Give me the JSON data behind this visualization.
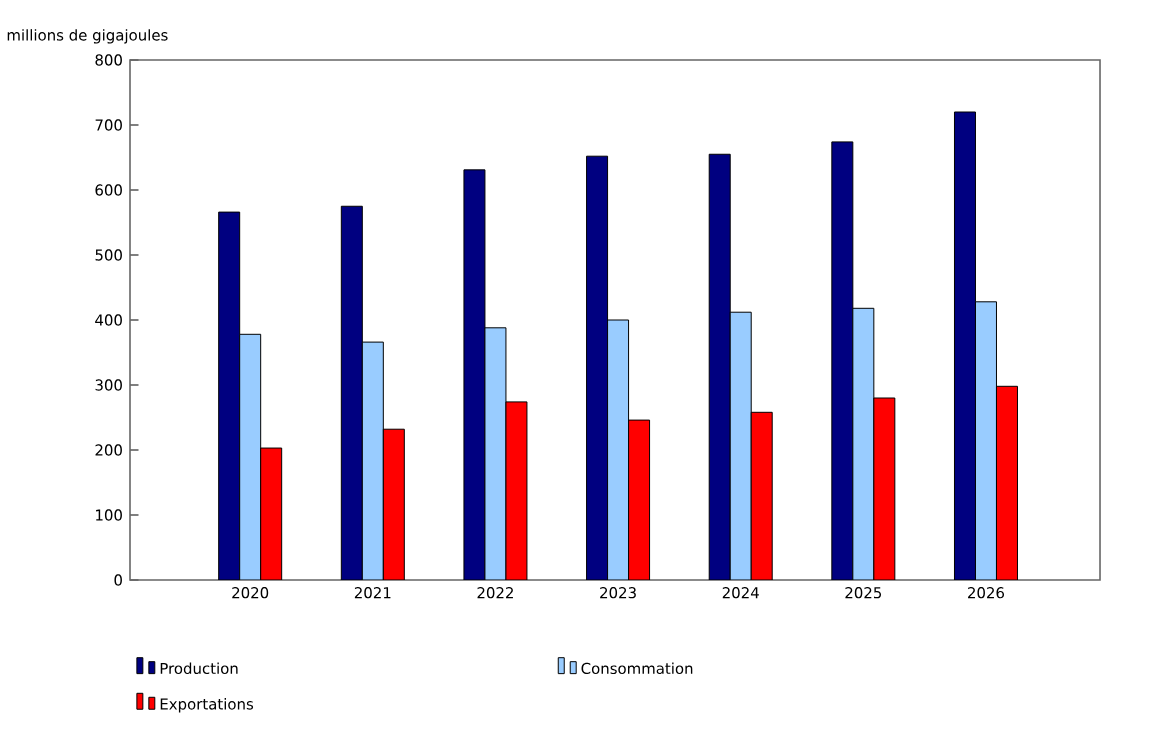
{
  "chart_data": {
    "type": "bar",
    "ylabel": "millions de gigajoules",
    "categories": [
      "2020",
      "2021",
      "2022",
      "2023",
      "2024",
      "2025",
      "2026"
    ],
    "series": [
      {
        "name": "Production",
        "color": "#000080",
        "values": [
          566,
          575,
          631,
          652,
          655,
          674,
          720
        ]
      },
      {
        "name": "Consommation",
        "color": "#99ccff",
        "values": [
          378,
          366,
          388,
          400,
          412,
          418,
          428
        ]
      },
      {
        "name": "Exportations",
        "color": "#ff0000",
        "values": [
          203,
          232,
          274,
          246,
          258,
          280,
          298
        ]
      }
    ],
    "ylim": [
      0,
      800
    ],
    "yticks": [
      0,
      100,
      200,
      300,
      400,
      500,
      600,
      700,
      800
    ],
    "grid": false,
    "legend": "bottom"
  }
}
